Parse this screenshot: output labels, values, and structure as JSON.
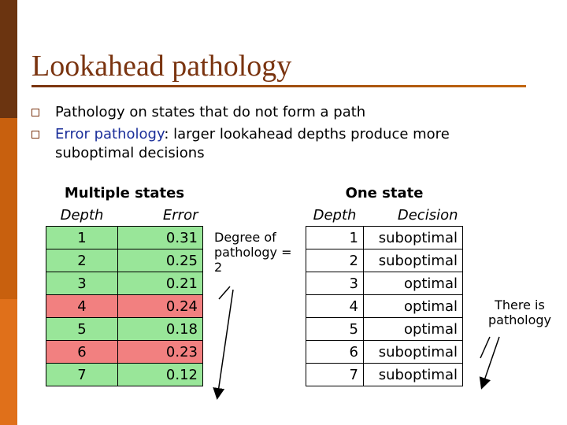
{
  "title": "Lookahead pathology",
  "bullets": [
    {
      "text": "Pathology on states that do not form a path"
    },
    {
      "term": "Error pathology",
      "text": ": larger lookahead depths produce more suboptimal decisions"
    }
  ],
  "left_table": {
    "title": "Multiple states",
    "headers": [
      "Depth",
      "Error"
    ],
    "rows": [
      {
        "cells": [
          "1",
          "0.31"
        ],
        "color": "#99e699"
      },
      {
        "cells": [
          "2",
          "0.25"
        ],
        "color": "#99e699"
      },
      {
        "cells": [
          "3",
          "0.21"
        ],
        "color": "#99e699"
      },
      {
        "cells": [
          "4",
          "0.24"
        ],
        "color": "#f28080"
      },
      {
        "cells": [
          "5",
          "0.18"
        ],
        "color": "#99e699"
      },
      {
        "cells": [
          "6",
          "0.23"
        ],
        "color": "#f28080"
      },
      {
        "cells": [
          "7",
          "0.12"
        ],
        "color": "#99e699"
      }
    ]
  },
  "left_note": "Degree of pathology = 2",
  "right_table": {
    "title": "One state",
    "headers": [
      "Depth",
      "Decision"
    ],
    "rows": [
      {
        "cells": [
          "1",
          "suboptimal"
        ],
        "color": "#ffffff"
      },
      {
        "cells": [
          "2",
          "suboptimal"
        ],
        "color": "#ffffff"
      },
      {
        "cells": [
          "3",
          "optimal"
        ],
        "color": "#ffffff"
      },
      {
        "cells": [
          "4",
          "optimal"
        ],
        "color": "#ffffff"
      },
      {
        "cells": [
          "5",
          "optimal"
        ],
        "color": "#ffffff"
      },
      {
        "cells": [
          "6",
          "suboptimal"
        ],
        "color": "#ffffff"
      },
      {
        "cells": [
          "7",
          "suboptimal"
        ],
        "color": "#ffffff"
      }
    ]
  },
  "right_note": "There is pathology"
}
